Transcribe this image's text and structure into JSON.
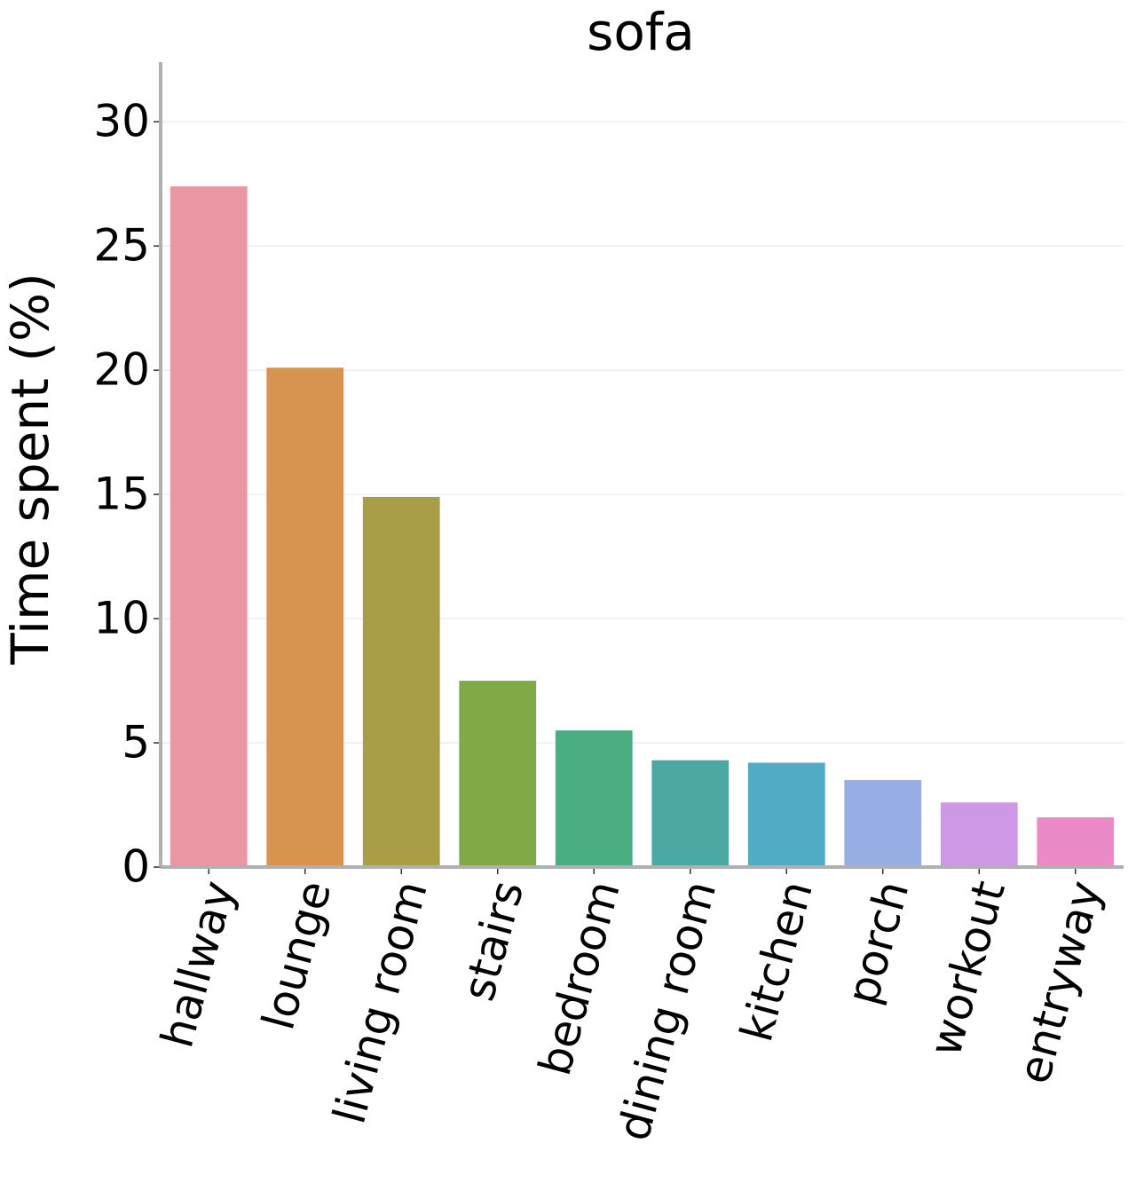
{
  "chart_data": {
    "type": "bar",
    "title": "sofa",
    "ylabel": "Time spent (%)",
    "categories": [
      "hallway",
      "lounge",
      "living room",
      "stairs",
      "bedroom",
      "dining room",
      "kitchen",
      "porch",
      "workout",
      "entryway"
    ],
    "values": [
      27.4,
      20.1,
      14.9,
      7.5,
      5.5,
      4.3,
      4.2,
      3.5,
      2.6,
      2.0
    ],
    "colors": [
      "#ea96a3",
      "#d6944f",
      "#aa9d47",
      "#80a948",
      "#4bae80",
      "#4ba8a2",
      "#51abc5",
      "#96aee4",
      "#cd98e6",
      "#ea8ac7"
    ],
    "ylim": [
      0,
      32.4
    ],
    "yticks": [
      0,
      5,
      10,
      15,
      20,
      25,
      30
    ],
    "grid": true
  }
}
